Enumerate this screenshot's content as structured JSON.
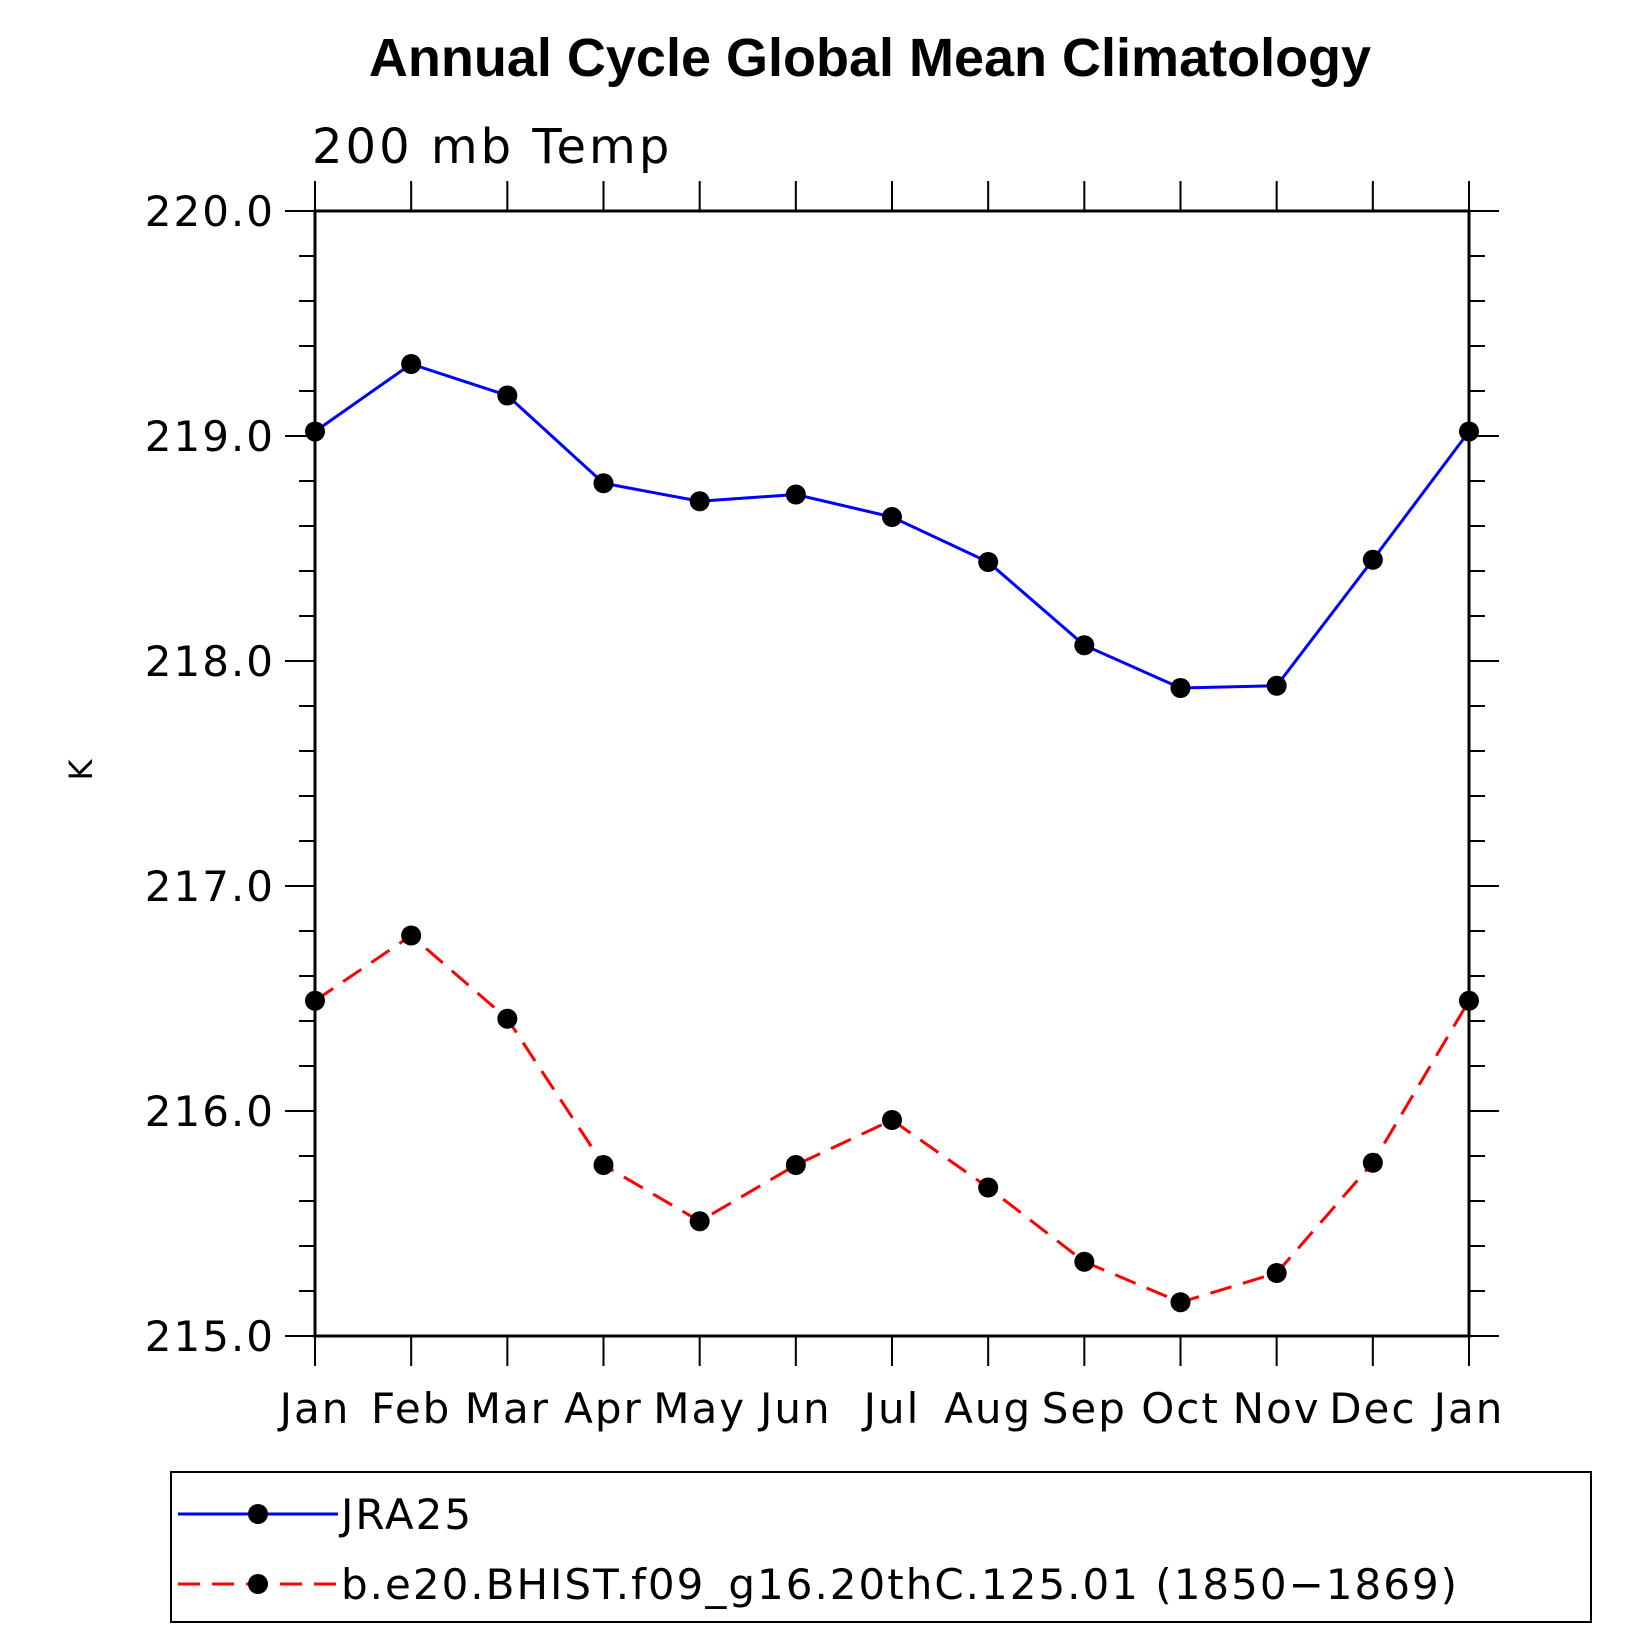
{
  "chart_data": {
    "type": "line",
    "title": "Annual Cycle Global Mean Climatology",
    "subtitle": "200 mb Temp",
    "ylabel": "K",
    "xlabel": "",
    "categories": [
      "Jan",
      "Feb",
      "Mar",
      "Apr",
      "May",
      "Jun",
      "Jul",
      "Aug",
      "Sep",
      "Oct",
      "Nov",
      "Dec",
      "Jan"
    ],
    "ylim": [
      215.0,
      220.0
    ],
    "yticks": [
      "220.0",
      "219.0",
      "218.0",
      "217.0",
      "216.0",
      "215.0"
    ],
    "series": [
      {
        "name": "JRA25",
        "color": "#0000ff",
        "dash": "solid",
        "marker": "filled-circle",
        "values": [
          219.02,
          219.32,
          219.18,
          218.79,
          218.71,
          218.74,
          218.64,
          218.44,
          218.07,
          217.88,
          217.89,
          218.45,
          219.02
        ]
      },
      {
        "name": "b.e20.BHIST.f09_g16.20thC.125.01 (1850−1869)",
        "color": "#ff0000",
        "dash": "dashed",
        "marker": "filled-circle",
        "values": [
          216.49,
          216.78,
          216.41,
          215.76,
          215.51,
          215.76,
          215.96,
          215.66,
          215.33,
          215.15,
          215.28,
          215.77,
          216.49
        ]
      }
    ],
    "grid": false,
    "legend": "bottom"
  }
}
